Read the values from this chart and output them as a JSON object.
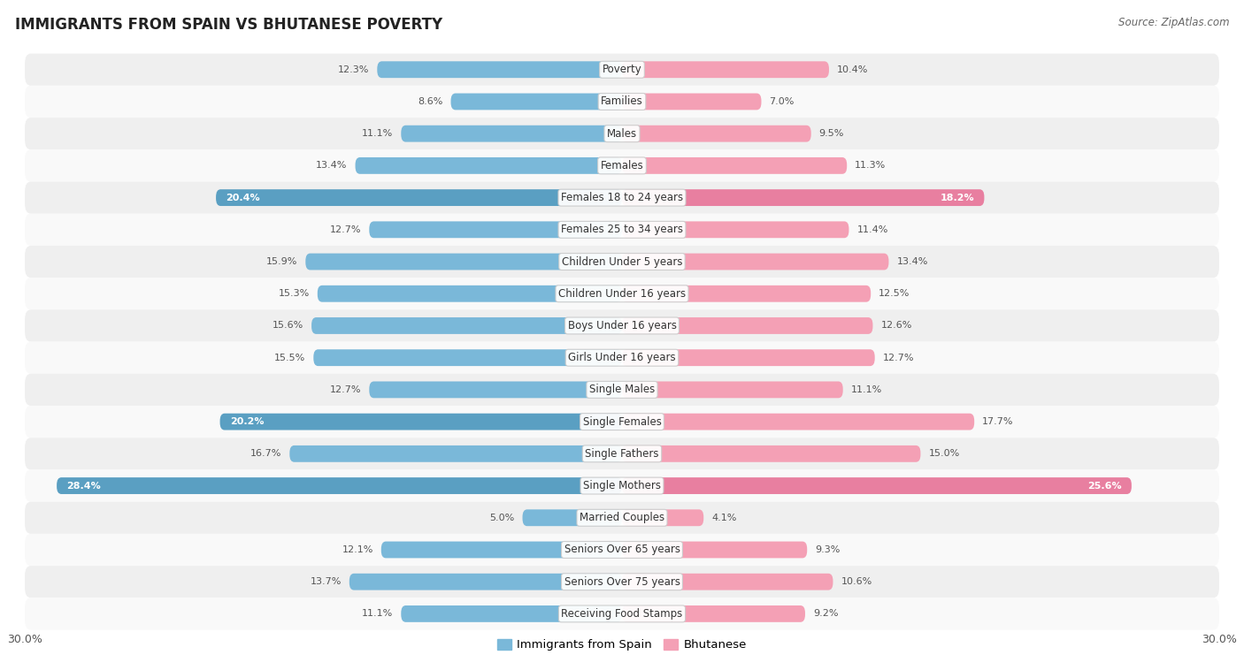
{
  "title": "IMMIGRANTS FROM SPAIN VS BHUTANESE POVERTY",
  "source": "Source: ZipAtlas.com",
  "categories": [
    "Poverty",
    "Families",
    "Males",
    "Females",
    "Females 18 to 24 years",
    "Females 25 to 34 years",
    "Children Under 5 years",
    "Children Under 16 years",
    "Boys Under 16 years",
    "Girls Under 16 years",
    "Single Males",
    "Single Females",
    "Single Fathers",
    "Single Mothers",
    "Married Couples",
    "Seniors Over 65 years",
    "Seniors Over 75 years",
    "Receiving Food Stamps"
  ],
  "spain_values": [
    12.3,
    8.6,
    11.1,
    13.4,
    20.4,
    12.7,
    15.9,
    15.3,
    15.6,
    15.5,
    12.7,
    20.2,
    16.7,
    28.4,
    5.0,
    12.1,
    13.7,
    11.1
  ],
  "bhutan_values": [
    10.4,
    7.0,
    9.5,
    11.3,
    18.2,
    11.4,
    13.4,
    12.5,
    12.6,
    12.7,
    11.1,
    17.7,
    15.0,
    25.6,
    4.1,
    9.3,
    10.6,
    9.2
  ],
  "spain_color": "#7ab8d9",
  "bhutan_color": "#f4a0b5",
  "spain_label": "Immigrants from Spain",
  "bhutan_label": "Bhutanese",
  "axis_max": 30.0,
  "bg_color": "#ffffff",
  "bar_height": 0.52,
  "title_fontsize": 12,
  "label_fontsize": 8.5,
  "value_fontsize": 8.0,
  "row_colors": [
    "#efefef",
    "#f9f9f9"
  ],
  "highlight_threshold": 18.0,
  "highlight_color_spain": "#5a9fc2",
  "highlight_color_bhutan": "#e87fa0"
}
